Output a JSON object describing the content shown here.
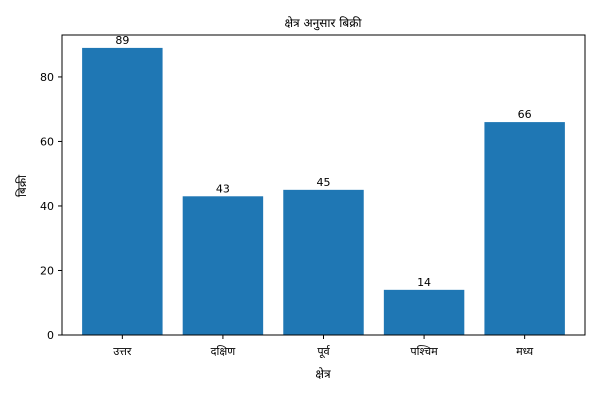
{
  "chart_data": {
    "type": "bar",
    "title": "क्षेत्र अनुसार बिक्री",
    "xlabel": "क्षेत्र",
    "ylabel": "बिक्री",
    "categories": [
      "उत्तर",
      "दक्षिण",
      "पूर्व",
      "पश्चिम",
      "मध्य"
    ],
    "values": [
      89,
      43,
      45,
      14,
      66
    ],
    "ylim": [
      0,
      93
    ],
    "yticks": [
      0,
      20,
      40,
      60,
      80
    ],
    "bar_color": "#1f77b4",
    "grid": false,
    "legend": "none",
    "data_labels": true
  }
}
